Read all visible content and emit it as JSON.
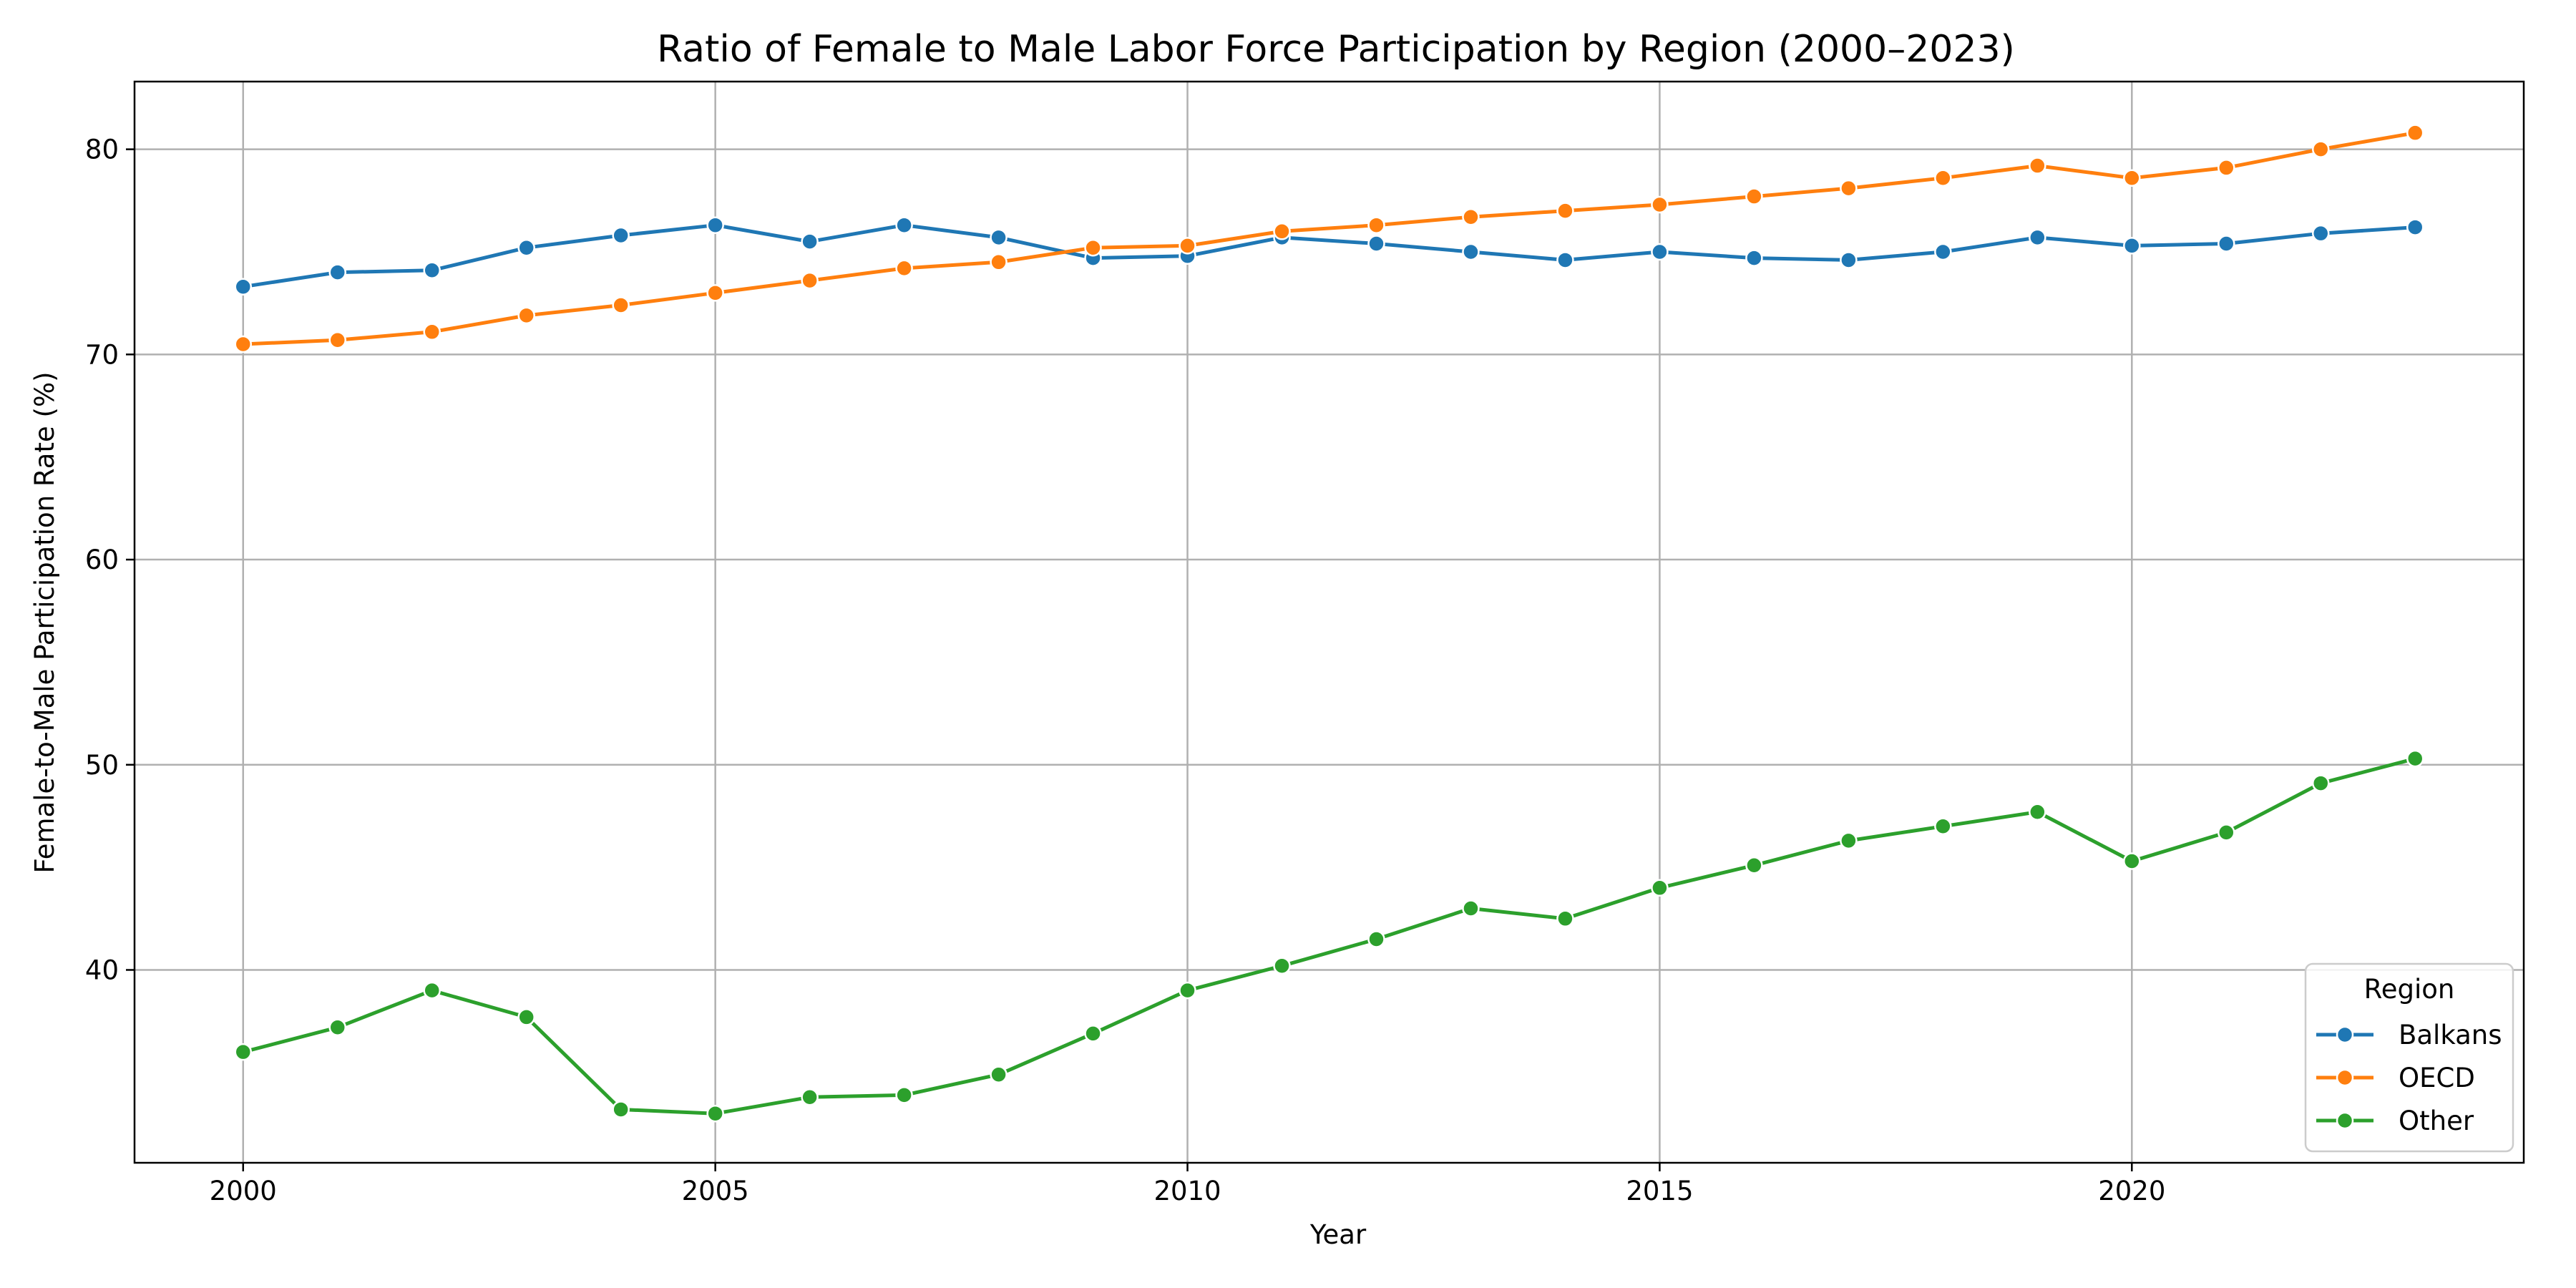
{
  "chart_data": {
    "type": "line",
    "title": "Ratio of Female to Male Labor Force Participation by Region (2000–2023)",
    "xlabel": "Year",
    "ylabel": "Female-to-Male Participation Rate (%)",
    "xlim": [
      1998.85,
      2024.15
    ],
    "ylim": [
      30.6,
      83.3
    ],
    "xticks": [
      2000,
      2005,
      2010,
      2015,
      2020
    ],
    "yticks": [
      40,
      50,
      60,
      70,
      80
    ],
    "grid": true,
    "legend": {
      "title": "Region",
      "placement": "lower-right"
    },
    "x": [
      2000,
      2001,
      2002,
      2003,
      2004,
      2005,
      2006,
      2007,
      2008,
      2009,
      2010,
      2011,
      2012,
      2013,
      2014,
      2015,
      2016,
      2017,
      2018,
      2019,
      2020,
      2021,
      2022,
      2023
    ],
    "series": [
      {
        "name": "Balkans",
        "color": "#1f77b4",
        "values": [
          73.3,
          74.0,
          74.1,
          75.2,
          75.8,
          76.3,
          75.5,
          76.3,
          75.7,
          74.7,
          74.8,
          75.7,
          75.4,
          75.0,
          74.6,
          75.0,
          74.7,
          74.6,
          75.0,
          75.7,
          75.3,
          75.4,
          75.9,
          76.2
        ]
      },
      {
        "name": "OECD",
        "color": "#ff7f0e",
        "values": [
          70.5,
          70.7,
          71.1,
          71.9,
          72.4,
          73.0,
          73.6,
          74.2,
          74.5,
          75.2,
          75.3,
          76.0,
          76.3,
          76.7,
          77.0,
          77.3,
          77.7,
          78.1,
          78.6,
          79.2,
          78.6,
          79.1,
          80.0,
          80.8
        ]
      },
      {
        "name": "Other",
        "color": "#2ca02c",
        "values": [
          36.0,
          37.2,
          39.0,
          37.7,
          33.2,
          33.0,
          33.8,
          33.9,
          34.9,
          36.9,
          39.0,
          40.2,
          41.5,
          43.0,
          42.5,
          44.0,
          45.1,
          46.3,
          47.0,
          47.7,
          45.3,
          46.7,
          49.1,
          50.3
        ]
      }
    ]
  }
}
